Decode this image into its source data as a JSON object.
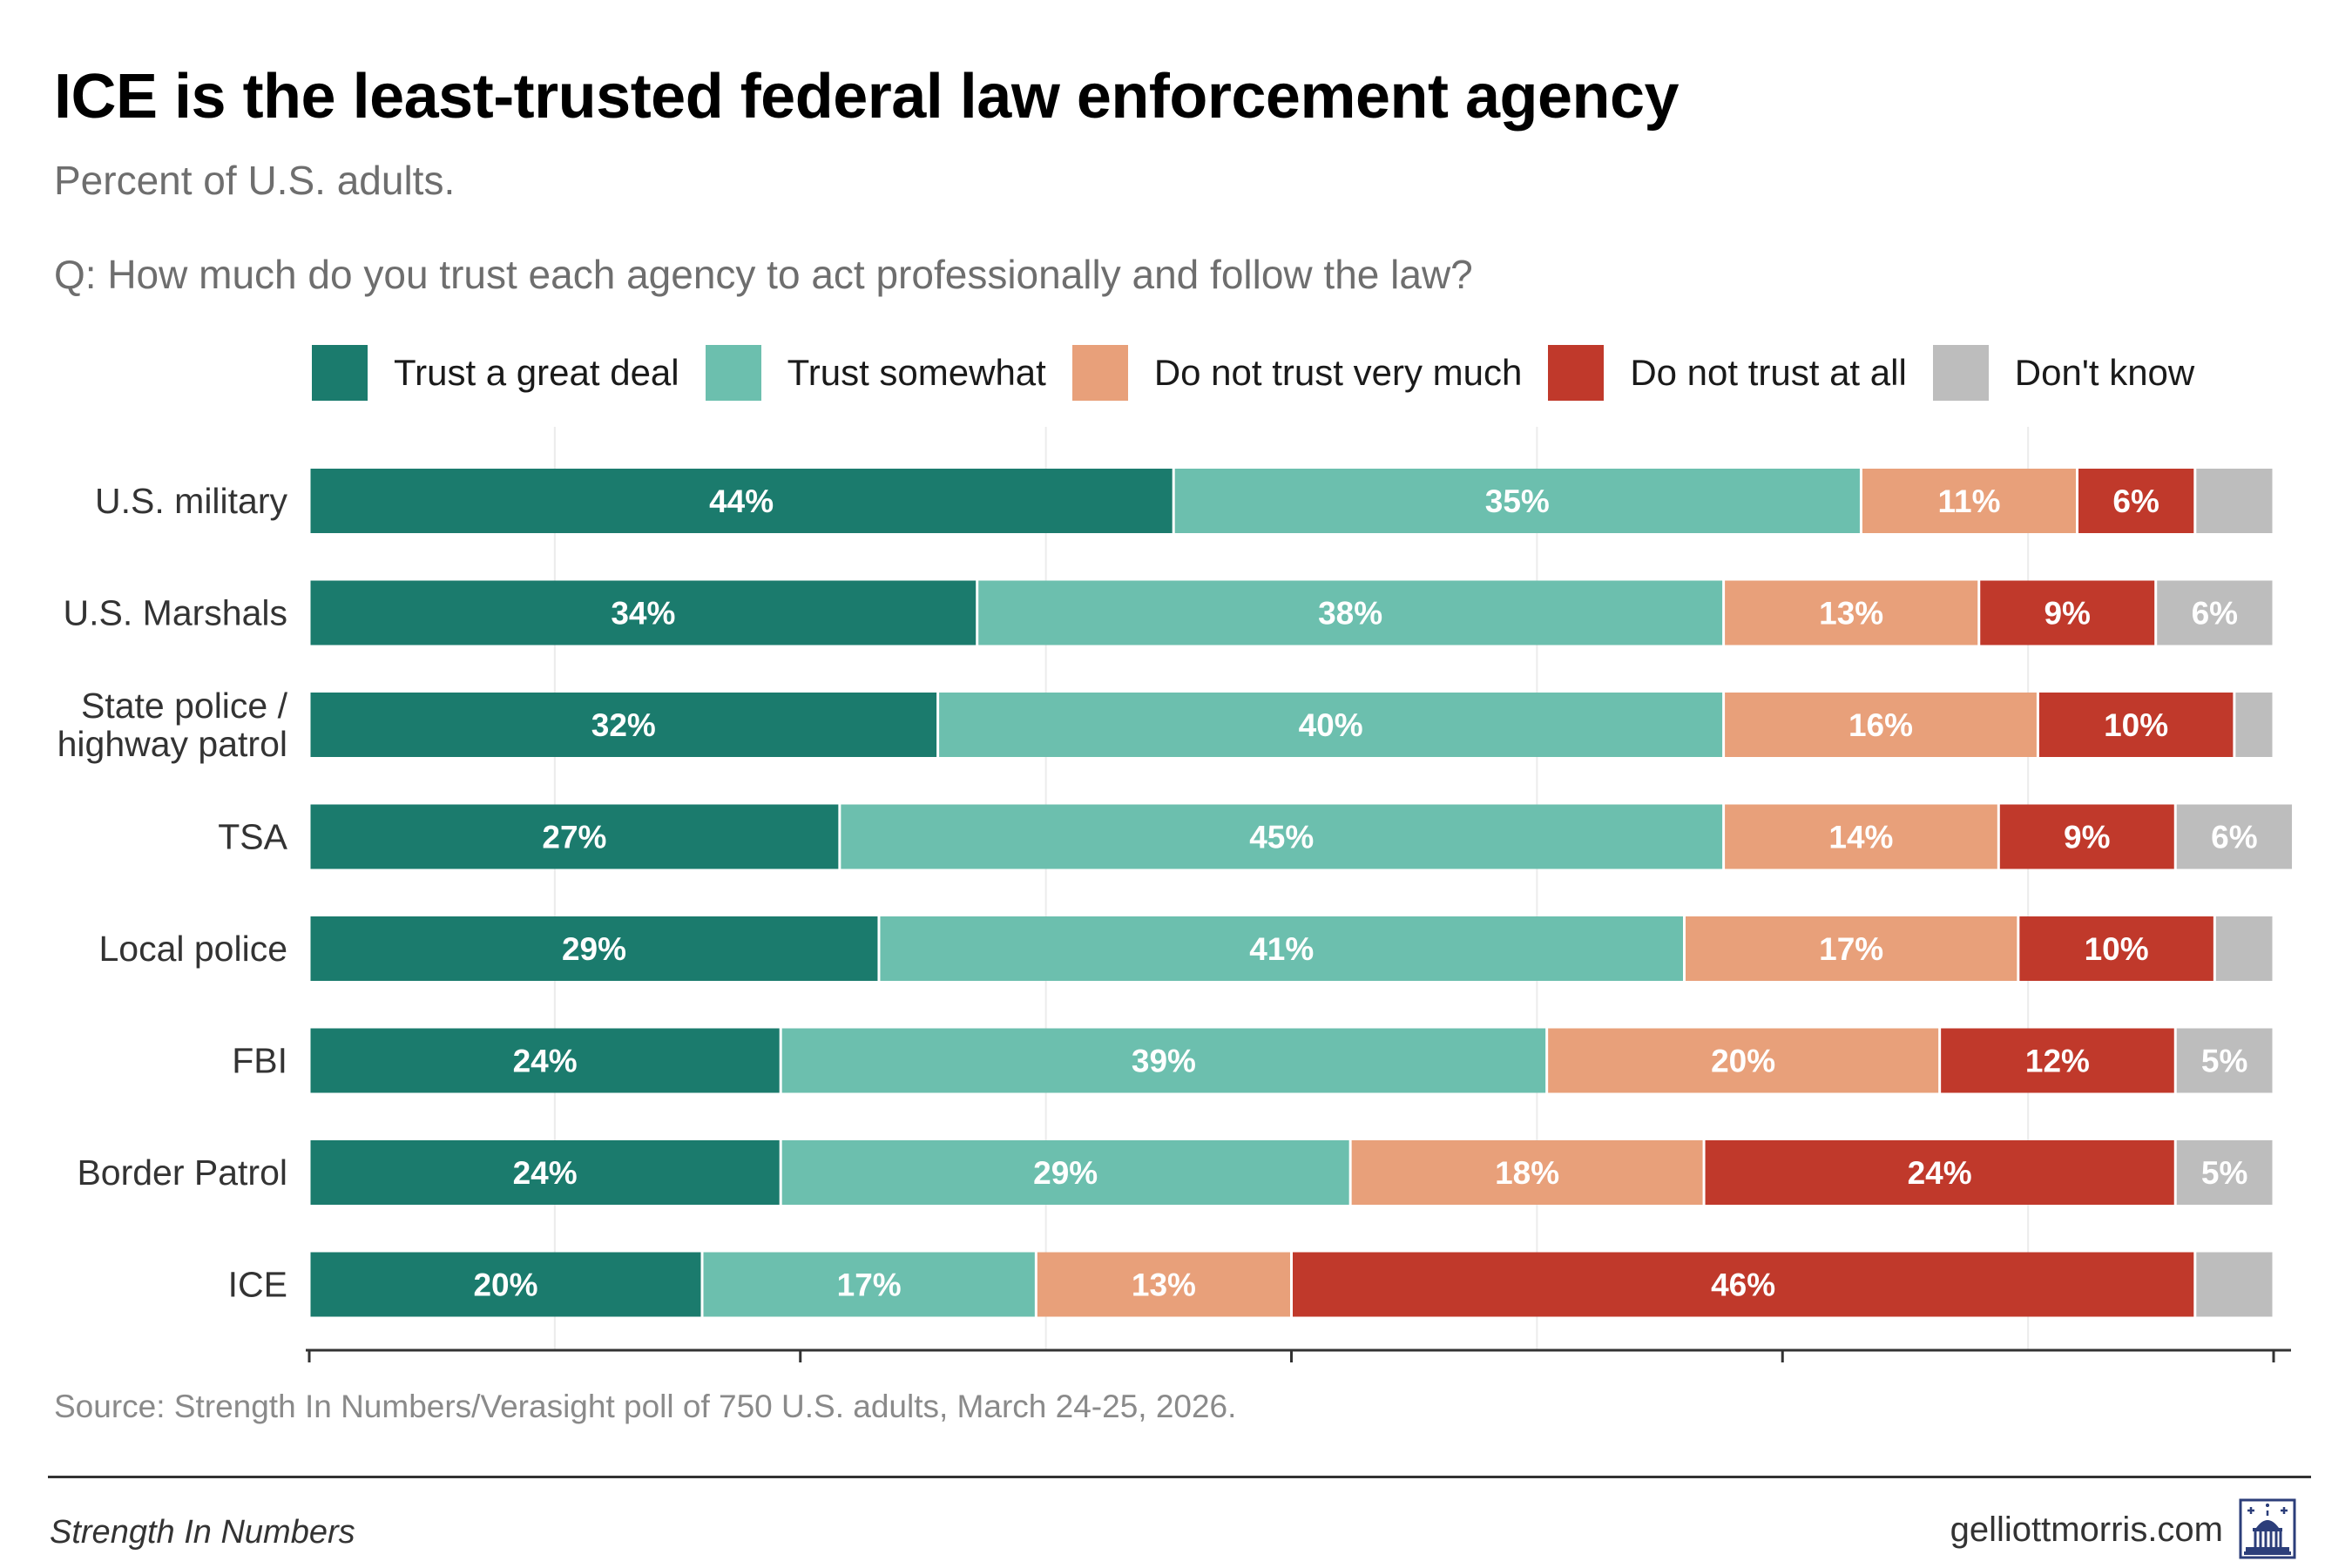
{
  "header": {
    "title": "ICE is the least-trusted federal law enforcement agency",
    "subtitle": "Percent of U.S. adults.",
    "question": "Q: How much do you trust each agency to act professionally and follow the law?"
  },
  "legend": [
    {
      "label": "Trust a great deal",
      "color": "#1b7b6d"
    },
    {
      "label": "Trust somewhat",
      "color": "#6cbfae"
    },
    {
      "label": "Do not trust very much",
      "color": "#e8a07a"
    },
    {
      "label": "Do not trust at all",
      "color": "#c0392b"
    },
    {
      "label": "Don't know",
      "color": "#bdbdbd"
    }
  ],
  "chart_data": {
    "type": "bar",
    "orientation": "horizontal",
    "stacked": true,
    "categories": [
      "U.S. military",
      "U.S. Marshals",
      "State police / highway patrol",
      "TSA",
      "Local police",
      "FBI",
      "Border Patrol",
      "ICE"
    ],
    "category_lines": [
      [
        "U.S. military"
      ],
      [
        "U.S. Marshals"
      ],
      [
        "State police /",
        "highway patrol"
      ],
      [
        "TSA"
      ],
      [
        "Local police"
      ],
      [
        "FBI"
      ],
      [
        "Border Patrol"
      ],
      [
        "ICE"
      ]
    ],
    "series": [
      {
        "name": "Trust a great deal",
        "values": [
          44,
          34,
          32,
          27,
          29,
          24,
          24,
          20
        ]
      },
      {
        "name": "Trust somewhat",
        "values": [
          35,
          38,
          40,
          45,
          41,
          39,
          29,
          17
        ]
      },
      {
        "name": "Do not trust very much",
        "values": [
          11,
          13,
          16,
          14,
          17,
          20,
          18,
          13
        ]
      },
      {
        "name": "Do not trust at all",
        "values": [
          6,
          9,
          10,
          9,
          10,
          12,
          24,
          46
        ]
      },
      {
        "name": "Don't know",
        "values": [
          4,
          6,
          2,
          6,
          3,
          5,
          5,
          4
        ]
      }
    ],
    "label_threshold": 5,
    "xlim": [
      0,
      100
    ],
    "grid": true,
    "title": "ICE is the least-trusted federal law enforcement agency",
    "xlabel": "",
    "ylabel": ""
  },
  "source": "Source: Strength In Numbers/Verasight poll of 750 U.S. adults, March 24-25, 2026.",
  "footer": {
    "left": "Strength In Numbers",
    "right": "gelliottmorris.com",
    "logo_icon": "capitol-dome-icon"
  }
}
